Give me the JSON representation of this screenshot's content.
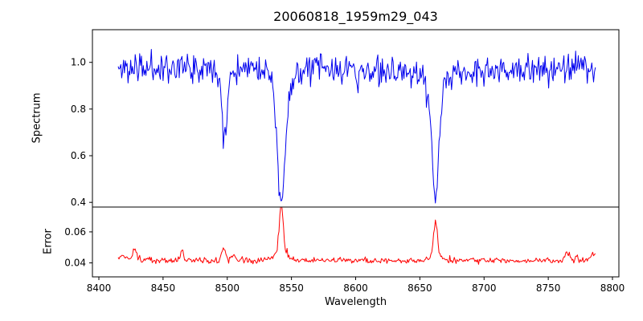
{
  "title": "20060818_1959m29_043",
  "axes": {
    "xlabel": "Wavelength",
    "xlim": [
      8395,
      8805
    ],
    "xticks": [
      8400,
      8450,
      8500,
      8550,
      8600,
      8650,
      8700,
      8750,
      8800
    ],
    "xtick_labels": [
      "8400",
      "8450",
      "8500",
      "8550",
      "8600",
      "8650",
      "8700",
      "8750",
      "8800"
    ],
    "background": "#ffffff",
    "frame_color": "#000000"
  },
  "chart_data": [
    {
      "type": "line",
      "name": "spectrum",
      "ylabel": "Spectrum",
      "color": "#0000ee",
      "ylim": [
        0.38,
        1.14
      ],
      "yticks": [
        0.4,
        0.6,
        0.8,
        1.0
      ],
      "ytick_labels": [
        "0.4",
        "0.6",
        "0.8",
        "1.0"
      ],
      "x_range": [
        8415,
        8787
      ],
      "step": 0.7,
      "continuum": 0.972,
      "continuum_wiggle": 0.012,
      "noise_sigma": 0.032,
      "absorption_lines": [
        {
          "center": 8498.0,
          "depth": 0.31,
          "sigma": 2.2
        },
        {
          "center": 8542.1,
          "depth": 0.52,
          "sigma": 3.2
        },
        {
          "center": 8542.1,
          "depth": 0.05,
          "sigma": 9.0
        },
        {
          "center": 8662.1,
          "depth": 0.5,
          "sigma": 2.8
        },
        {
          "center": 8662.1,
          "depth": 0.04,
          "sigma": 8.0
        }
      ]
    },
    {
      "type": "line",
      "name": "error",
      "ylabel": "Error",
      "color": "#ff0000",
      "ylim": [
        0.031,
        0.076
      ],
      "yticks": [
        0.04,
        0.06
      ],
      "ytick_labels": [
        "0.04",
        "0.06"
      ],
      "x_range": [
        8415,
        8787
      ],
      "step": 0.7,
      "baseline": 0.0415,
      "noise_sigma": 0.0009,
      "peaks": [
        {
          "center": 8418,
          "height": 0.003,
          "sigma": 3.0
        },
        {
          "center": 8428,
          "height": 0.0075,
          "sigma": 1.5
        },
        {
          "center": 8465,
          "height": 0.006,
          "sigma": 1.2
        },
        {
          "center": 8497,
          "height": 0.0075,
          "sigma": 1.5
        },
        {
          "center": 8505,
          "height": 0.004,
          "sigma": 2.0
        },
        {
          "center": 8542.1,
          "height": 0.032,
          "sigma": 1.5
        },
        {
          "center": 8542.1,
          "height": 0.005,
          "sigma": 5.0
        },
        {
          "center": 8662.1,
          "height": 0.022,
          "sigma": 1.5
        },
        {
          "center": 8662.1,
          "height": 0.003,
          "sigma": 4.0
        },
        {
          "center": 8765,
          "height": 0.005,
          "sigma": 2.0
        },
        {
          "center": 8772,
          "height": 0.003,
          "sigma": 1.0
        },
        {
          "center": 8786,
          "height": 0.004,
          "sigma": 3.0
        }
      ]
    }
  ]
}
